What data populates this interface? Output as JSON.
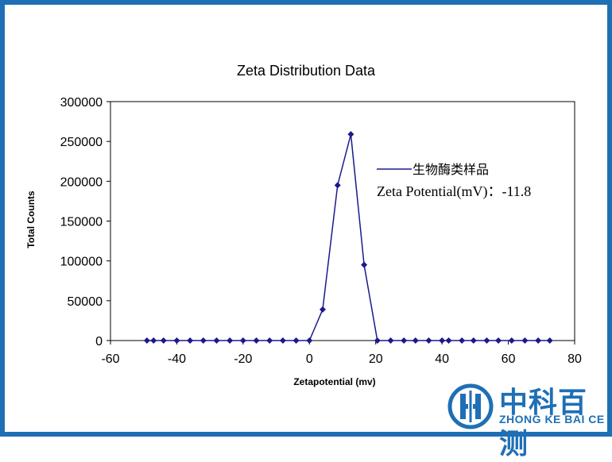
{
  "chart_data": {
    "type": "line",
    "title": "Zeta Distribution Data",
    "xlabel": "Zetapotential (mv)",
    "ylabel": "Total Counts",
    "xlim": [
      -60,
      80
    ],
    "ylim": [
      0,
      300000
    ],
    "xticks": [
      -60,
      -40,
      -20,
      0,
      20,
      40,
      60,
      80
    ],
    "yticks": [
      0,
      50000,
      100000,
      150000,
      200000,
      250000,
      300000
    ],
    "grid": false,
    "marker": "diamond",
    "line_color": "#1a1a8c",
    "series": [
      {
        "name": "生物酶类样品",
        "x": [
          -49,
          -47,
          -44,
          -40,
          -36,
          -32,
          -28,
          -24,
          -20,
          -16,
          -12,
          -8,
          -4,
          0,
          4,
          8.5,
          12.5,
          16.5,
          20.5,
          24.5,
          28.5,
          32,
          36,
          40,
          42,
          46,
          49.5,
          53.5,
          57,
          61,
          65,
          69,
          72.5
        ],
        "y": [
          0,
          0,
          0,
          0,
          0,
          0,
          0,
          0,
          0,
          0,
          0,
          0,
          0,
          0,
          39000,
          195000,
          259000,
          95000,
          0,
          0,
          0,
          0,
          0,
          0,
          0,
          0,
          0,
          0,
          0,
          0,
          0,
          0,
          0
        ]
      }
    ],
    "legend_placement": "top-right",
    "annotation": "Zeta Potential(mV)：-11.8"
  },
  "watermark": {
    "name": "中科百测",
    "subtitle": "ZHONG KE BAI CE",
    "color": "#1f6fb5"
  }
}
